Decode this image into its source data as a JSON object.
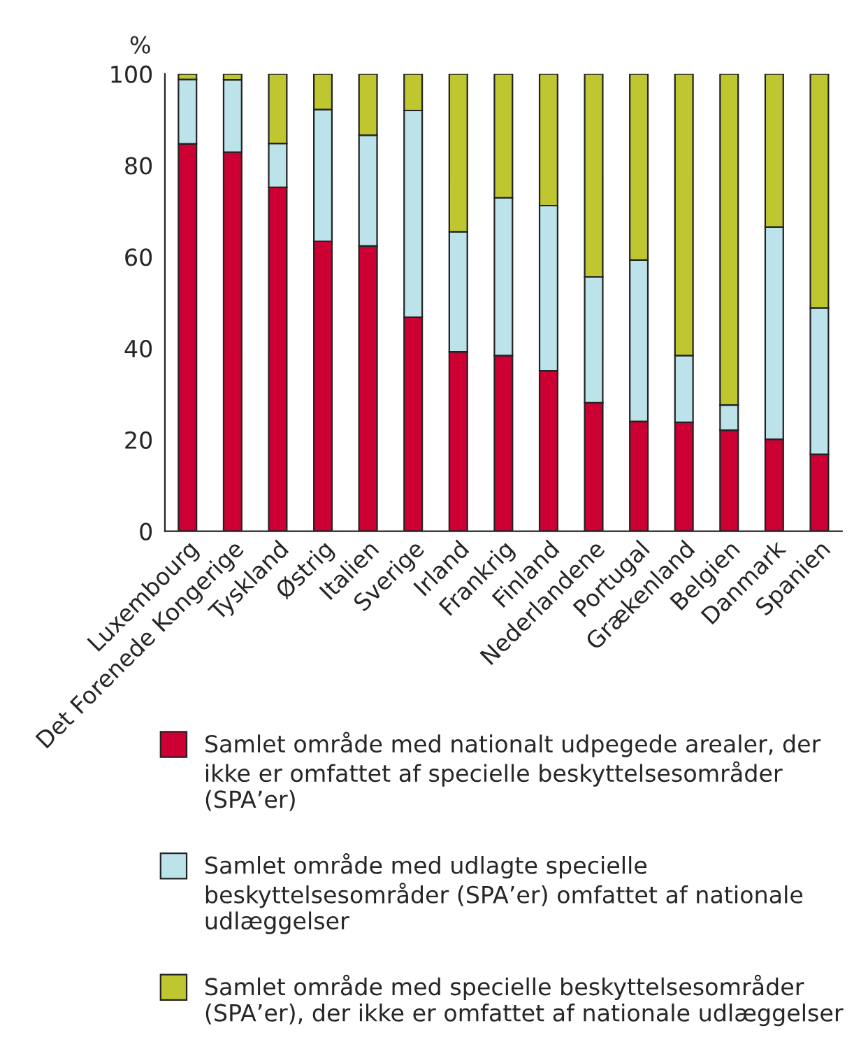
{
  "chart_data": {
    "type": "bar",
    "stacked": true,
    "ylabel": "%",
    "ylim": [
      0,
      100
    ],
    "yticks": [
      0,
      20,
      40,
      60,
      80,
      100
    ],
    "grid": false,
    "legend": "bottom",
    "categories": [
      "Luxembourg",
      "Det Forenede Kongerige",
      "Tyskland",
      "Østrig",
      "Italien",
      "Sverige",
      "Irland",
      "Frankrig",
      "Finland",
      "Nederlandene",
      "Portugal",
      "Grækenland",
      "Belgien",
      "Danmark",
      "Spanien"
    ],
    "series": [
      {
        "name": "Samlet område med nationalt udpegede arealer, der ikke er omfattet af specielle beskyttelsesområder (SPA’er)",
        "color": "#cc0033",
        "values": [
          84.7,
          82.9,
          75.2,
          63.4,
          62.4,
          46.8,
          39.2,
          38.4,
          35.1,
          28.1,
          24.0,
          23.8,
          22.1,
          20.1,
          16.8
        ]
      },
      {
        "name": "Samlet område med udlagte specielle beskyttelsesområder (SPA’er) omfattet af nationale udlæggelser",
        "color": "#bde3ea",
        "values": [
          14.1,
          15.8,
          9.6,
          28.8,
          24.2,
          45.2,
          26.3,
          34.5,
          36.1,
          27.5,
          35.3,
          14.6,
          5.5,
          46.4,
          32.0
        ]
      },
      {
        "name": "Samlet område med specielle beskyttelsesområder (SPA’er), der ikke er omfattet af nationale udlæggelser",
        "color": "#bfc730",
        "values": [
          1.2,
          1.3,
          15.2,
          7.8,
          13.4,
          8.0,
          34.5,
          27.1,
          28.8,
          44.4,
          40.7,
          61.6,
          72.4,
          33.5,
          51.2
        ]
      }
    ]
  }
}
